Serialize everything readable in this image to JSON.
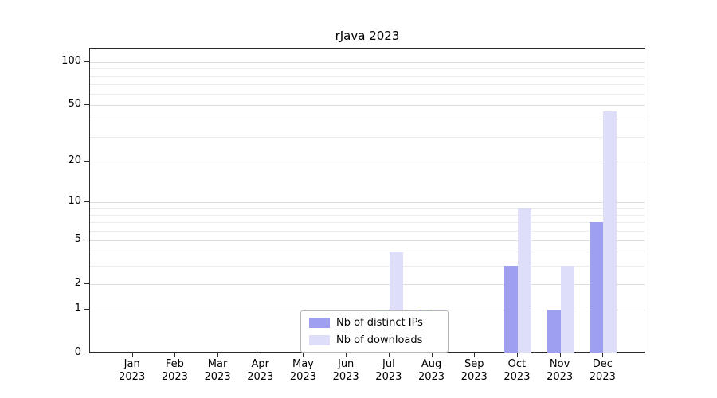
{
  "chart_data": {
    "type": "bar",
    "title": "rJava 2023",
    "categories": [
      {
        "month": "Jan",
        "year": "2023"
      },
      {
        "month": "Feb",
        "year": "2023"
      },
      {
        "month": "Mar",
        "year": "2023"
      },
      {
        "month": "Apr",
        "year": "2023"
      },
      {
        "month": "May",
        "year": "2023"
      },
      {
        "month": "Jun",
        "year": "2023"
      },
      {
        "month": "Jul",
        "year": "2023"
      },
      {
        "month": "Aug",
        "year": "2023"
      },
      {
        "month": "Sep",
        "year": "2023"
      },
      {
        "month": "Oct",
        "year": "2023"
      },
      {
        "month": "Nov",
        "year": "2023"
      },
      {
        "month": "Dec",
        "year": "2023"
      }
    ],
    "series": [
      {
        "name": "Nb of distinct IPs",
        "color": "#9f9ff0",
        "values": [
          0,
          0,
          0,
          0,
          0,
          0,
          1,
          1,
          0,
          3,
          1,
          7
        ]
      },
      {
        "name": "Nb of downloads",
        "color": "#dedef8",
        "values": [
          0,
          0,
          0,
          0,
          0,
          0,
          4,
          1,
          0,
          9,
          3,
          45
        ]
      }
    ],
    "y_axis": {
      "scale": "log1p",
      "ticks": [
        0,
        1,
        2,
        5,
        10,
        20,
        50,
        100
      ],
      "minor_ticks": [
        1,
        2,
        3,
        4,
        5,
        6,
        7,
        8,
        9,
        10,
        20,
        30,
        40,
        50,
        60,
        70,
        80,
        90,
        100
      ],
      "max": 100
    },
    "xlabel": "",
    "ylabel": "",
    "grid": "horizontal",
    "legend_position": "bottom-center"
  }
}
